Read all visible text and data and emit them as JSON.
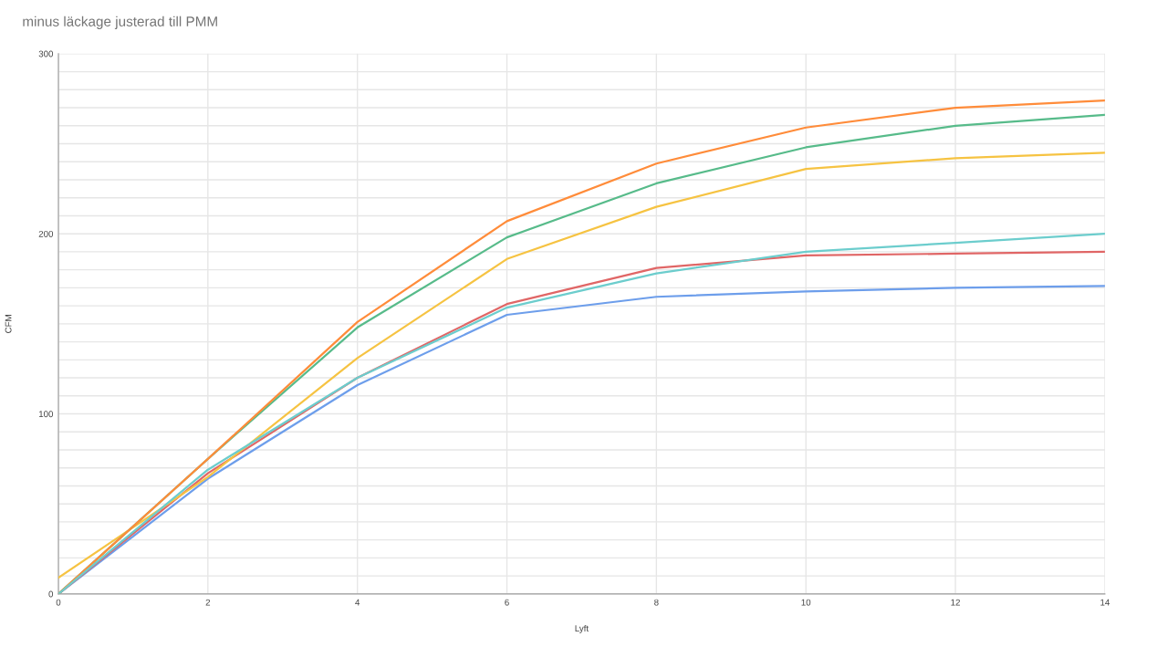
{
  "chart_data": {
    "type": "line",
    "title": "minus läckage justerad till PMM",
    "xlabel": "Lyft",
    "ylabel": "CFM",
    "x": [
      0,
      2,
      4,
      6,
      8,
      10,
      12,
      14
    ],
    "series": [
      {
        "color": "#6d9eeb",
        "values": [
          0,
          64,
          116,
          155,
          165,
          168,
          170,
          171
        ]
      },
      {
        "color": "#e06666",
        "values": [
          0,
          67,
          120,
          161,
          181,
          188,
          189,
          190
        ]
      },
      {
        "color": "#f6c342",
        "values": [
          9,
          65,
          131,
          186,
          215,
          236,
          242,
          245
        ]
      },
      {
        "color": "#57bb8a",
        "values": [
          0,
          75,
          148,
          198,
          228,
          248,
          260,
          266
        ]
      },
      {
        "color": "#ff8c3a",
        "values": [
          0,
          75,
          151,
          207,
          239,
          259,
          270,
          274
        ]
      },
      {
        "color": "#6ccdcd",
        "values": [
          0,
          69,
          120,
          159,
          178,
          190,
          195,
          200
        ]
      }
    ],
    "xlim": [
      0,
      14
    ],
    "xticks": [
      0,
      2,
      4,
      6,
      8,
      10,
      12,
      14
    ],
    "ylim": [
      0,
      300
    ],
    "yticks": [
      0,
      {
        "value": 10,
        "label": null
      },
      {
        "value": 20,
        "label": null
      },
      {
        "value": 30,
        "label": null
      },
      {
        "value": 40,
        "label": null
      },
      {
        "value": 50,
        "label": null
      },
      {
        "value": 60,
        "label": null
      },
      {
        "value": 70,
        "label": null
      },
      {
        "value": 80,
        "label": null
      },
      {
        "value": 90,
        "label": null
      },
      100,
      {
        "value": 110,
        "label": null
      },
      {
        "value": 120,
        "label": null
      },
      {
        "value": 130,
        "label": null
      },
      {
        "value": 140,
        "label": null
      },
      {
        "value": 150,
        "label": null
      },
      {
        "value": 160,
        "label": null
      },
      {
        "value": 170,
        "label": null
      },
      {
        "value": 180,
        "label": null
      },
      {
        "value": 190,
        "label": null
      },
      200,
      {
        "value": 210,
        "label": null
      },
      {
        "value": 220,
        "label": null
      },
      {
        "value": 230,
        "label": null
      },
      {
        "value": 240,
        "label": null
      },
      {
        "value": 250,
        "label": null
      },
      {
        "value": 260,
        "label": null
      },
      {
        "value": 270,
        "label": null
      },
      {
        "value": 280,
        "label": null
      },
      {
        "value": 290,
        "label": null
      },
      300
    ],
    "grid": true,
    "marker": "none",
    "line_style": "solid"
  }
}
